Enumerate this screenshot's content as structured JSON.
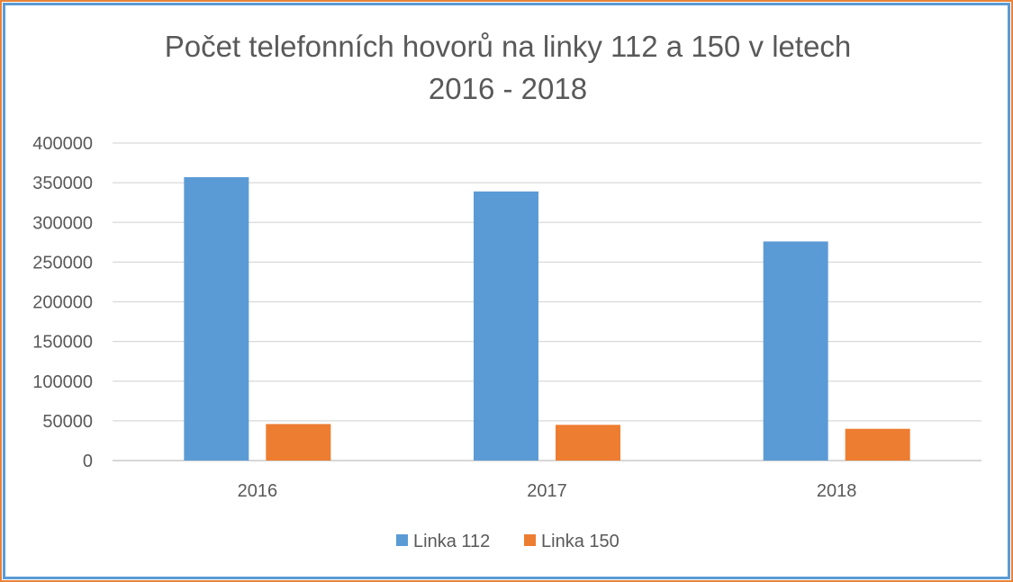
{
  "chart_data": {
    "type": "bar",
    "title": "Počet telefonních hovorů na linky 112 a 150 v letech 2016 - 2018",
    "title_lines": [
      "Počet telefonních hovorů na linky 112 a 150 v letech",
      "2016 - 2018"
    ],
    "categories": [
      "2016",
      "2017",
      "2018"
    ],
    "series": [
      {
        "name": "Linka 112",
        "color": "#5b9bd5",
        "values": [
          357000,
          339000,
          276000
        ]
      },
      {
        "name": "Linka 150",
        "color": "#ed7d31",
        "values": [
          46000,
          45000,
          40000
        ]
      }
    ],
    "xlabel": "",
    "ylabel": "",
    "ylim": [
      0,
      400000
    ],
    "yticks": [
      "0",
      "50000",
      "100000",
      "150000",
      "200000",
      "250000",
      "300000",
      "350000",
      "400000"
    ],
    "grid": true,
    "legend_position": "bottom"
  },
  "colors": {
    "frame_outer": "#e8833a",
    "frame_inner": "#5b9bd5",
    "gridline": "#d9d9d9",
    "text": "#595959"
  }
}
